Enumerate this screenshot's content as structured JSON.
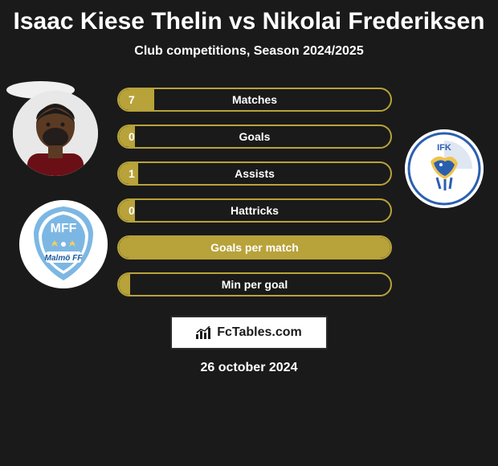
{
  "title": "Isaac Kiese Thelin vs Nikolai Frederiksen",
  "subtitle": "Club competitions, Season 2024/2025",
  "bar_style": {
    "border_color": "#b8a23a",
    "fill_color": "#b8a23a",
    "text_color": "#ffffff",
    "radius": 16,
    "height": 30
  },
  "bars": [
    {
      "label": "Matches",
      "left_value": "7",
      "fill_pct": 13
    },
    {
      "label": "Goals",
      "left_value": "0",
      "fill_pct": 6
    },
    {
      "label": "Assists",
      "left_value": "1",
      "fill_pct": 7
    },
    {
      "label": "Hattricks",
      "left_value": "0",
      "fill_pct": 6
    },
    {
      "label": "Goals per match",
      "left_value": "",
      "fill_pct": 100
    },
    {
      "label": "Min per goal",
      "left_value": "",
      "fill_pct": 4
    }
  ],
  "left_player": {
    "avatar_bg": "#e8e8e8",
    "skin": "#5b3a24",
    "hair": "#1a1a1a",
    "shirt": "#6b0f16"
  },
  "left_club": {
    "name": "Malmö FF",
    "short": "MFF",
    "primary": "#7cb7e4",
    "secondary": "#ffffff",
    "text": "#1a5a9e"
  },
  "right_club": {
    "name": "IFK",
    "primary": "#2a5fb0",
    "accent": "#f0c34a",
    "secondary": "#ffffff"
  },
  "footer": {
    "brand": "FcTables.com",
    "date": "26 october 2024",
    "box_bg": "#ffffff",
    "box_text": "#1a1a1a"
  }
}
